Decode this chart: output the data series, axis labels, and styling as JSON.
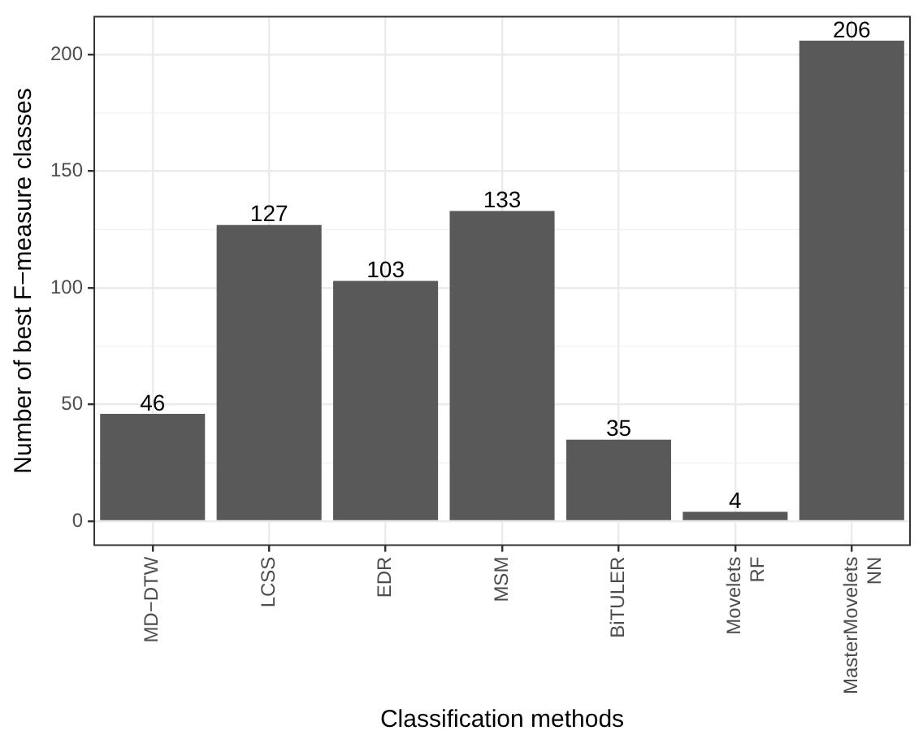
{
  "chart_data": {
    "type": "bar",
    "xlabel": "Classification methods",
    "ylabel": "Number of best F−measure classes",
    "categories": [
      "MD−DTW",
      "LCSS",
      "EDR",
      "MSM",
      "BiTULER",
      "Movelets\nRF",
      "MasterMovelets\nNN"
    ],
    "values": [
      46,
      127,
      103,
      133,
      35,
      4,
      206
    ],
    "color": "#595959",
    "ylim": [
      -10.3,
      216.3
    ],
    "yticks": [
      0,
      50,
      100,
      150,
      200
    ],
    "grid": true,
    "data_labels": true
  }
}
